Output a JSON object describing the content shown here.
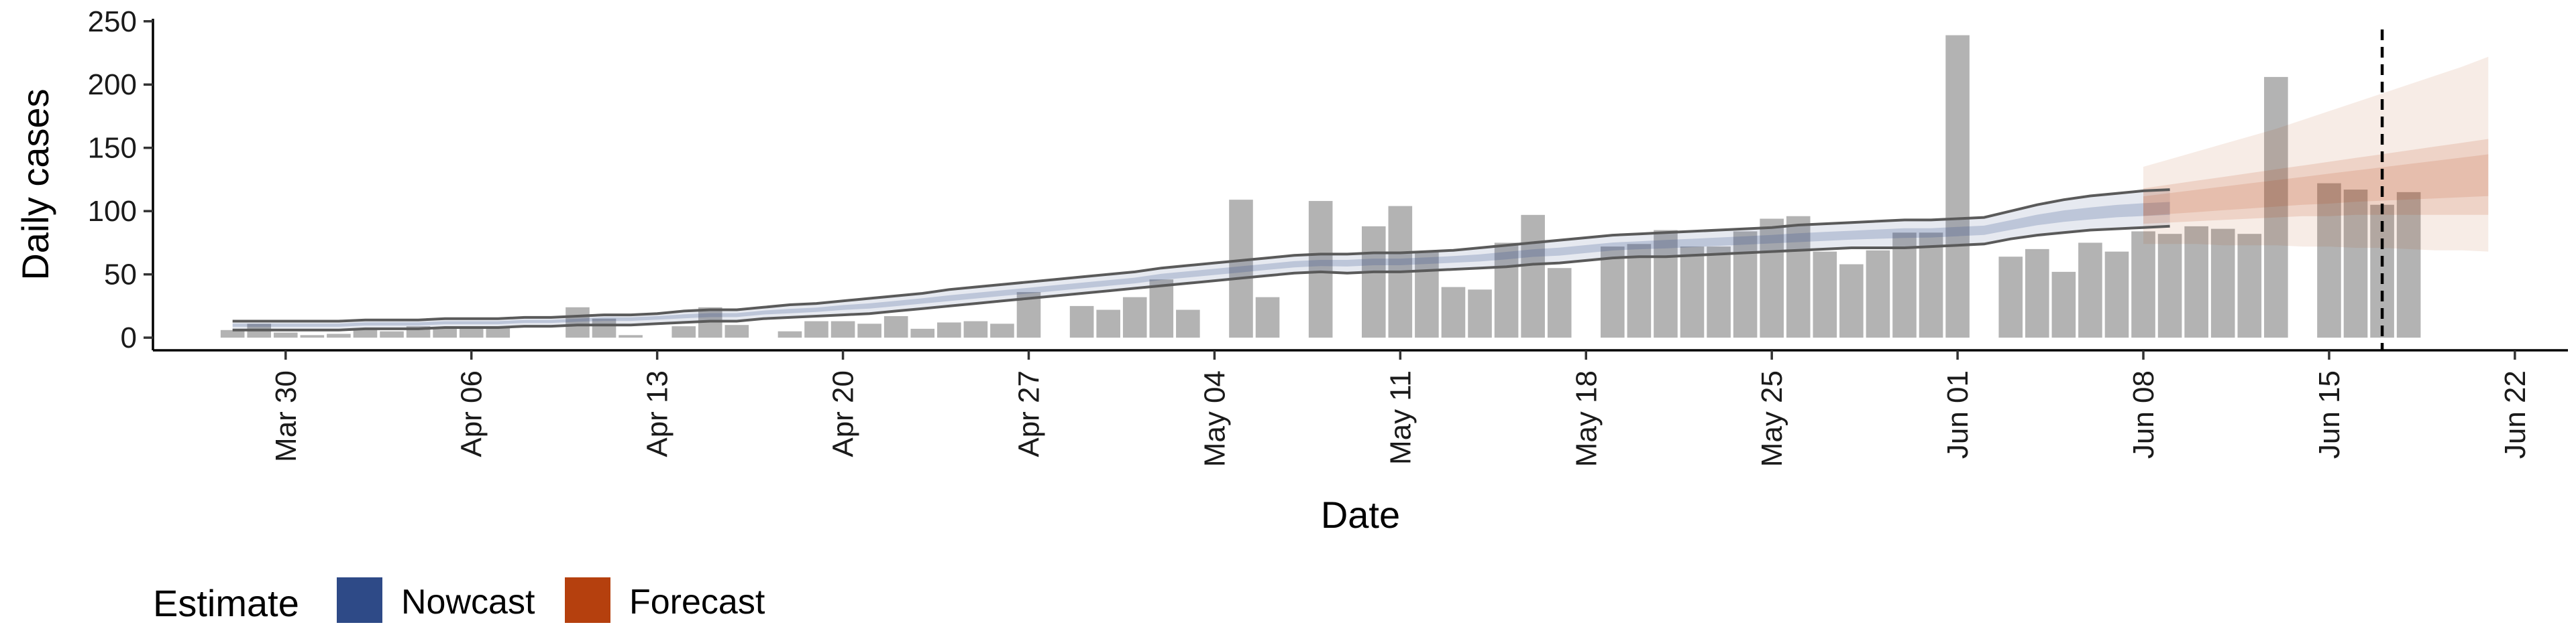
{
  "chart_data": {
    "type": "bar",
    "xlabel": "Date",
    "ylabel": "Daily cases",
    "xlim": [
      "2020-03-25",
      "2020-06-24"
    ],
    "ylim": [
      -10,
      252
    ],
    "x_ticks": [
      "2020-03-30",
      "2020-04-06",
      "2020-04-13",
      "2020-04-20",
      "2020-04-27",
      "2020-05-04",
      "2020-05-11",
      "2020-05-18",
      "2020-05-25",
      "2020-06-01",
      "2020-06-08",
      "2020-06-15",
      "2020-06-22"
    ],
    "x_tick_labels": [
      "Mar 30",
      "Apr 06",
      "Apr 13",
      "Apr 20",
      "Apr 27",
      "May 04",
      "May 11",
      "May 18",
      "May 25",
      "Jun 01",
      "Jun 08",
      "Jun 15",
      "Jun 22"
    ],
    "y_ticks": [
      0,
      50,
      100,
      150,
      200,
      250
    ],
    "y_tick_labels": [
      "0",
      "50",
      "100",
      "150",
      "200",
      "250"
    ],
    "grid": false,
    "bar_color": "#b3b3b3",
    "reference_line_date": "2020-06-17",
    "bars": {
      "start_date": "2020-03-28",
      "values": [
        6,
        11,
        4,
        2,
        3,
        7,
        5,
        9,
        7,
        8,
        9,
        0,
        0,
        24,
        15,
        2,
        0,
        9,
        24,
        10,
        0,
        5,
        13,
        13,
        11,
        17,
        7,
        12,
        13,
        11,
        36,
        0,
        25,
        22,
        32,
        46,
        22,
        0,
        109,
        32,
        0,
        108,
        0,
        88,
        104,
        68,
        40,
        38,
        75,
        97,
        55,
        0,
        72,
        74,
        85,
        72,
        72,
        84,
        94,
        96,
        68,
        58,
        69,
        83,
        83,
        239,
        0,
        64,
        70,
        52,
        75,
        68,
        84,
        82,
        88,
        86,
        82,
        206,
        0,
        122,
        117,
        105,
        115
      ]
    },
    "series": [
      {
        "name": "Nowcast",
        "color": "#2e4a87",
        "start_date": "2020-03-28",
        "median": [
          10,
          10,
          10,
          10,
          10,
          11,
          11,
          11,
          12,
          12,
          12,
          13,
          13,
          14,
          15,
          15,
          16,
          17,
          18,
          18,
          20,
          21,
          22,
          24,
          25,
          27,
          29,
          31,
          33,
          35,
          37,
          39,
          41,
          43,
          45,
          48,
          50,
          52,
          54,
          56,
          58,
          59,
          59,
          60,
          60,
          61,
          62,
          63,
          65,
          67,
          68,
          70,
          72,
          73,
          74,
          75,
          76,
          77,
          78,
          79,
          80,
          81,
          82,
          83,
          83,
          84,
          85,
          89,
          93,
          96,
          98,
          100,
          101,
          102
        ],
        "lower": [
          6,
          6,
          6,
          6,
          6,
          7,
          7,
          7,
          8,
          8,
          8,
          9,
          9,
          10,
          10,
          10,
          11,
          12,
          13,
          13,
          15,
          16,
          17,
          18,
          19,
          21,
          23,
          25,
          27,
          29,
          31,
          33,
          35,
          37,
          39,
          41,
          43,
          45,
          47,
          49,
          51,
          52,
          51,
          52,
          52,
          53,
          54,
          55,
          56,
          58,
          59,
          61,
          63,
          64,
          64,
          65,
          66,
          67,
          68,
          69,
          70,
          71,
          71,
          71,
          72,
          73,
          74,
          78,
          81,
          83,
          85,
          86,
          87,
          88
        ],
        "upper": [
          13,
          13,
          13,
          13,
          13,
          14,
          14,
          14,
          15,
          15,
          15,
          16,
          16,
          17,
          18,
          18,
          19,
          21,
          22,
          22,
          24,
          26,
          27,
          29,
          31,
          33,
          35,
          38,
          40,
          42,
          44,
          46,
          48,
          50,
          52,
          55,
          57,
          59,
          61,
          63,
          65,
          66,
          66,
          67,
          67,
          68,
          69,
          71,
          73,
          75,
          77,
          79,
          81,
          82,
          83,
          84,
          85,
          86,
          87,
          89,
          90,
          91,
          92,
          93,
          93,
          94,
          95,
          100,
          105,
          109,
          112,
          114,
          116,
          117
        ]
      },
      {
        "name": "Forecast",
        "color": "#b5400e",
        "start_date": "2020-06-08",
        "median": [
          104,
          106,
          108,
          110,
          112,
          114,
          116,
          118,
          120,
          122,
          124,
          126,
          128,
          130
        ],
        "lower_inner": [
          90,
          91,
          92,
          93,
          94,
          95,
          96,
          96,
          97,
          97,
          97,
          97,
          97,
          97
        ],
        "upper_inner": [
          118,
          121,
          124,
          127,
          130,
          133,
          136,
          139,
          142,
          145,
          148,
          151,
          154,
          157
        ],
        "lower_outer": [
          74,
          74,
          74,
          73,
          73,
          73,
          72,
          72,
          71,
          71,
          70,
          69,
          69,
          68
        ],
        "upper_outer": [
          135,
          141,
          147,
          153,
          159,
          165,
          172,
          179,
          186,
          193,
          200,
          207,
          214,
          222
        ]
      }
    ],
    "legend": {
      "title": "Estimate",
      "position": "bottom-left",
      "items": [
        {
          "label": "Nowcast",
          "color": "#2e4a87"
        },
        {
          "label": "Forecast",
          "color": "#b5400e"
        }
      ]
    }
  }
}
